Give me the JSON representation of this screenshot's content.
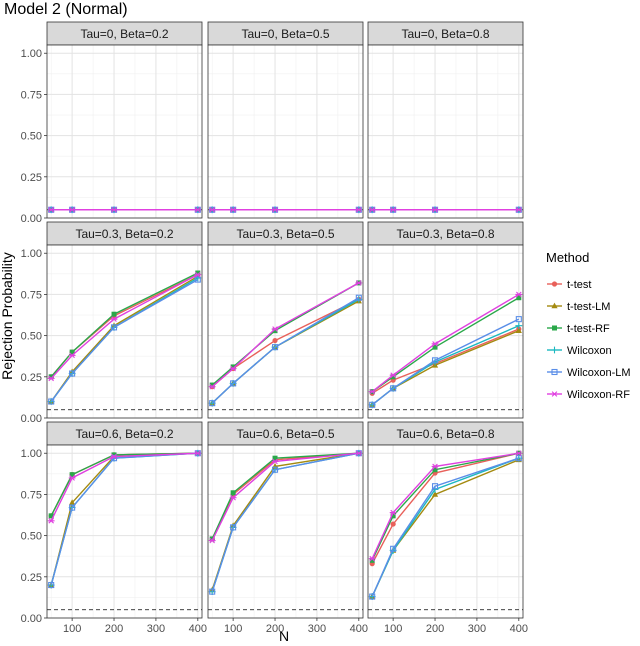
{
  "title": "Model 2 (Normal)",
  "xlabel": "N",
  "ylabel": "Rejection Probability",
  "legend": {
    "title": "Method",
    "items": [
      {
        "name": "t-test",
        "color": "#e8605a",
        "marker": "circle"
      },
      {
        "name": "t-test-LM",
        "color": "#a48a10",
        "marker": "triangle"
      },
      {
        "name": "t-test-RF",
        "color": "#2aa84a",
        "marker": "square"
      },
      {
        "name": "Wilcoxon",
        "color": "#1cb8c0",
        "marker": "plus"
      },
      {
        "name": "Wilcoxon-LM",
        "color": "#5a8ee8",
        "marker": "square-open"
      },
      {
        "name": "Wilcoxon-RF",
        "color": "#e040e0",
        "marker": "asterisk"
      }
    ]
  },
  "chart_data": {
    "type": "line",
    "x": [
      50,
      100,
      200,
      400
    ],
    "xticks": [
      "100",
      "200",
      "300",
      "400"
    ],
    "xlim": [
      40,
      410
    ],
    "ylim": [
      0,
      1.05
    ],
    "yticks": [
      "0.00",
      "0.25",
      "0.50",
      "0.75",
      "1.00"
    ],
    "reference_line": 0.05,
    "grid": true,
    "legend_position": "right",
    "panels": [
      {
        "label": "Tau=0, Beta=0.2",
        "series": [
          {
            "name": "t-test",
            "values": [
              0.05,
              0.05,
              0.05,
              0.05
            ]
          },
          {
            "name": "t-test-LM",
            "values": [
              0.05,
              0.05,
              0.05,
              0.05
            ]
          },
          {
            "name": "t-test-RF",
            "values": [
              0.05,
              0.05,
              0.05,
              0.05
            ]
          },
          {
            "name": "Wilcoxon",
            "values": [
              0.05,
              0.05,
              0.05,
              0.05
            ]
          },
          {
            "name": "Wilcoxon-LM",
            "values": [
              0.05,
              0.05,
              0.05,
              0.05
            ]
          },
          {
            "name": "Wilcoxon-RF",
            "values": [
              0.05,
              0.05,
              0.05,
              0.05
            ]
          }
        ]
      },
      {
        "label": "Tau=0, Beta=0.5",
        "series": [
          {
            "name": "t-test",
            "values": [
              0.05,
              0.05,
              0.05,
              0.05
            ]
          },
          {
            "name": "t-test-LM",
            "values": [
              0.05,
              0.05,
              0.05,
              0.05
            ]
          },
          {
            "name": "t-test-RF",
            "values": [
              0.05,
              0.05,
              0.05,
              0.05
            ]
          },
          {
            "name": "Wilcoxon",
            "values": [
              0.05,
              0.05,
              0.05,
              0.05
            ]
          },
          {
            "name": "Wilcoxon-LM",
            "values": [
              0.05,
              0.05,
              0.05,
              0.05
            ]
          },
          {
            "name": "Wilcoxon-RF",
            "values": [
              0.05,
              0.05,
              0.05,
              0.05
            ]
          }
        ]
      },
      {
        "label": "Tau=0, Beta=0.8",
        "series": [
          {
            "name": "t-test",
            "values": [
              0.05,
              0.05,
              0.05,
              0.05
            ]
          },
          {
            "name": "t-test-LM",
            "values": [
              0.05,
              0.05,
              0.05,
              0.05
            ]
          },
          {
            "name": "t-test-RF",
            "values": [
              0.05,
              0.05,
              0.05,
              0.05
            ]
          },
          {
            "name": "Wilcoxon",
            "values": [
              0.05,
              0.05,
              0.05,
              0.05
            ]
          },
          {
            "name": "Wilcoxon-LM",
            "values": [
              0.05,
              0.05,
              0.05,
              0.05
            ]
          },
          {
            "name": "Wilcoxon-RF",
            "values": [
              0.05,
              0.05,
              0.05,
              0.05
            ]
          }
        ]
      },
      {
        "label": "Tau=0.3, Beta=0.2",
        "series": [
          {
            "name": "t-test",
            "values": [
              0.25,
              0.4,
              0.62,
              0.87
            ]
          },
          {
            "name": "t-test-LM",
            "values": [
              0.1,
              0.28,
              0.56,
              0.86
            ]
          },
          {
            "name": "t-test-RF",
            "values": [
              0.25,
              0.4,
              0.63,
              0.88
            ]
          },
          {
            "name": "Wilcoxon",
            "values": [
              0.1,
              0.27,
              0.55,
              0.85
            ]
          },
          {
            "name": "Wilcoxon-LM",
            "values": [
              0.1,
              0.27,
              0.55,
              0.84
            ]
          },
          {
            "name": "Wilcoxon-RF",
            "values": [
              0.24,
              0.38,
              0.6,
              0.87
            ]
          }
        ]
      },
      {
        "label": "Tau=0.3, Beta=0.5",
        "series": [
          {
            "name": "t-test",
            "values": [
              0.19,
              0.3,
              0.47,
              0.72
            ]
          },
          {
            "name": "t-test-LM",
            "values": [
              0.09,
              0.21,
              0.43,
              0.71
            ]
          },
          {
            "name": "t-test-RF",
            "values": [
              0.2,
              0.31,
              0.53,
              0.82
            ]
          },
          {
            "name": "Wilcoxon",
            "values": [
              0.09,
              0.21,
              0.43,
              0.72
            ]
          },
          {
            "name": "Wilcoxon-LM",
            "values": [
              0.09,
              0.21,
              0.43,
              0.73
            ]
          },
          {
            "name": "Wilcoxon-RF",
            "values": [
              0.19,
              0.3,
              0.54,
              0.82
            ]
          }
        ]
      },
      {
        "label": "Tau=0.3, Beta=0.8",
        "series": [
          {
            "name": "t-test",
            "values": [
              0.15,
              0.23,
              0.33,
              0.54
            ]
          },
          {
            "name": "t-test-LM",
            "values": [
              0.08,
              0.18,
              0.32,
              0.53
            ]
          },
          {
            "name": "t-test-RF",
            "values": [
              0.16,
              0.25,
              0.43,
              0.73
            ]
          },
          {
            "name": "Wilcoxon",
            "values": [
              0.08,
              0.18,
              0.34,
              0.56
            ]
          },
          {
            "name": "Wilcoxon-LM",
            "values": [
              0.08,
              0.18,
              0.35,
              0.6
            ]
          },
          {
            "name": "Wilcoxon-RF",
            "values": [
              0.16,
              0.26,
              0.45,
              0.75
            ]
          }
        ]
      },
      {
        "label": "Tau=0.6, Beta=0.2",
        "series": [
          {
            "name": "t-test",
            "values": [
              0.62,
              0.87,
              0.99,
              1.0
            ]
          },
          {
            "name": "t-test-LM",
            "values": [
              0.2,
              0.7,
              0.98,
              1.0
            ]
          },
          {
            "name": "t-test-RF",
            "values": [
              0.62,
              0.87,
              0.99,
              1.0
            ]
          },
          {
            "name": "Wilcoxon",
            "values": [
              0.2,
              0.67,
              0.97,
              1.0
            ]
          },
          {
            "name": "Wilcoxon-LM",
            "values": [
              0.2,
              0.67,
              0.97,
              1.0
            ]
          },
          {
            "name": "Wilcoxon-RF",
            "values": [
              0.59,
              0.85,
              0.98,
              1.0
            ]
          }
        ]
      },
      {
        "label": "Tau=0.6, Beta=0.5",
        "series": [
          {
            "name": "t-test",
            "values": [
              0.48,
              0.75,
              0.96,
              1.0
            ]
          },
          {
            "name": "t-test-LM",
            "values": [
              0.17,
              0.56,
              0.92,
              1.0
            ]
          },
          {
            "name": "t-test-RF",
            "values": [
              0.48,
              0.76,
              0.97,
              1.0
            ]
          },
          {
            "name": "Wilcoxon",
            "values": [
              0.16,
              0.55,
              0.9,
              1.0
            ]
          },
          {
            "name": "Wilcoxon-LM",
            "values": [
              0.16,
              0.55,
              0.9,
              1.0
            ]
          },
          {
            "name": "Wilcoxon-RF",
            "values": [
              0.47,
              0.73,
              0.95,
              1.0
            ]
          }
        ]
      },
      {
        "label": "Tau=0.6, Beta=0.8",
        "series": [
          {
            "name": "t-test",
            "values": [
              0.33,
              0.57,
              0.88,
              1.0
            ]
          },
          {
            "name": "t-test-LM",
            "values": [
              0.13,
              0.41,
              0.75,
              0.96
            ]
          },
          {
            "name": "t-test-RF",
            "values": [
              0.35,
              0.62,
              0.9,
              1.0
            ]
          },
          {
            "name": "Wilcoxon",
            "values": [
              0.13,
              0.41,
              0.78,
              0.97
            ]
          },
          {
            "name": "Wilcoxon-LM",
            "values": [
              0.13,
              0.42,
              0.8,
              0.97
            ]
          },
          {
            "name": "Wilcoxon-RF",
            "values": [
              0.36,
              0.64,
              0.92,
              1.0
            ]
          }
        ]
      }
    ]
  }
}
